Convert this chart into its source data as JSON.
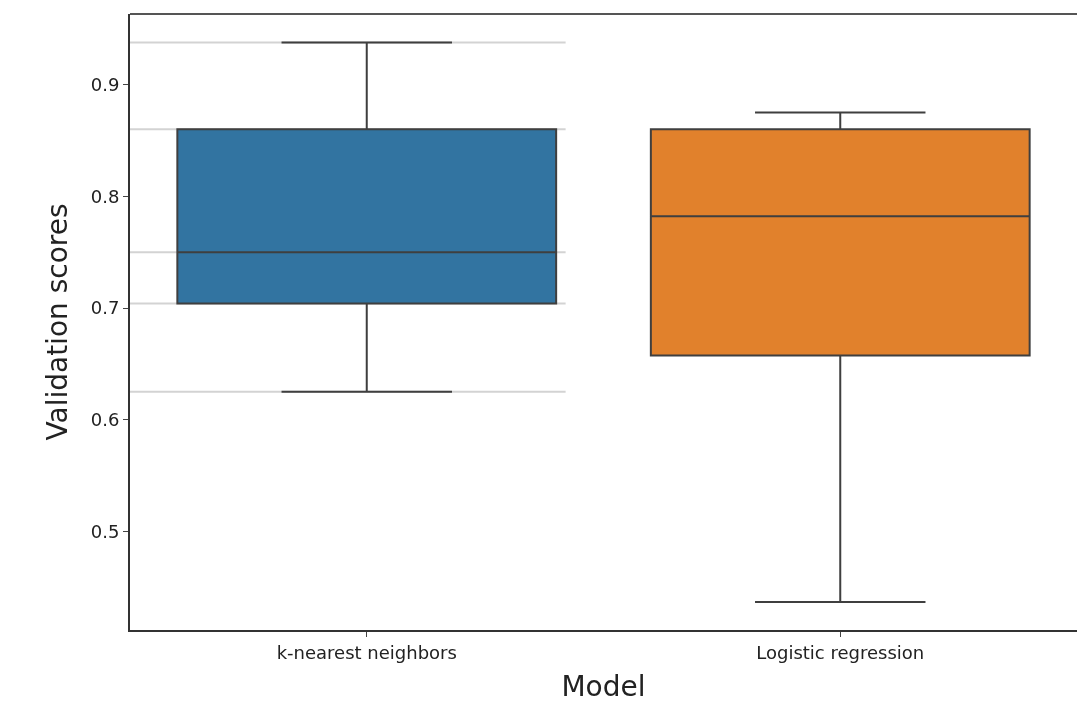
{
  "chart_data": {
    "type": "box",
    "xlabel": "Model",
    "ylabel": "Validation scores",
    "categories": [
      "k-nearest neighbors",
      "Logistic regression"
    ],
    "colors": [
      "#3274a1",
      "#e1812c"
    ],
    "boxes": [
      {
        "low": 0.625,
        "q1": 0.704,
        "median": 0.75,
        "q3": 0.86,
        "high": 0.9375
      },
      {
        "low": 0.437,
        "q1": 0.6575,
        "median": 0.782,
        "q3": 0.86,
        "high": 0.875
      }
    ],
    "ylim": [
      0.412,
      0.963
    ],
    "yticks": [
      0.5,
      0.6,
      0.7,
      0.8,
      0.9
    ],
    "ref_lines": [
      {
        "axis": "y",
        "value": 0.9375,
        "color": "#d3d3d3"
      },
      {
        "axis": "y",
        "value": 0.86,
        "color": "#d3d3d3"
      },
      {
        "axis": "y",
        "value": 0.75,
        "color": "#d3d3d3"
      },
      {
        "axis": "y",
        "value": 0.704,
        "color": "#d3d3d3"
      },
      {
        "axis": "y",
        "value": 0.625,
        "color": "#d3d3d3"
      }
    ],
    "grid": false,
    "legend": false
  }
}
